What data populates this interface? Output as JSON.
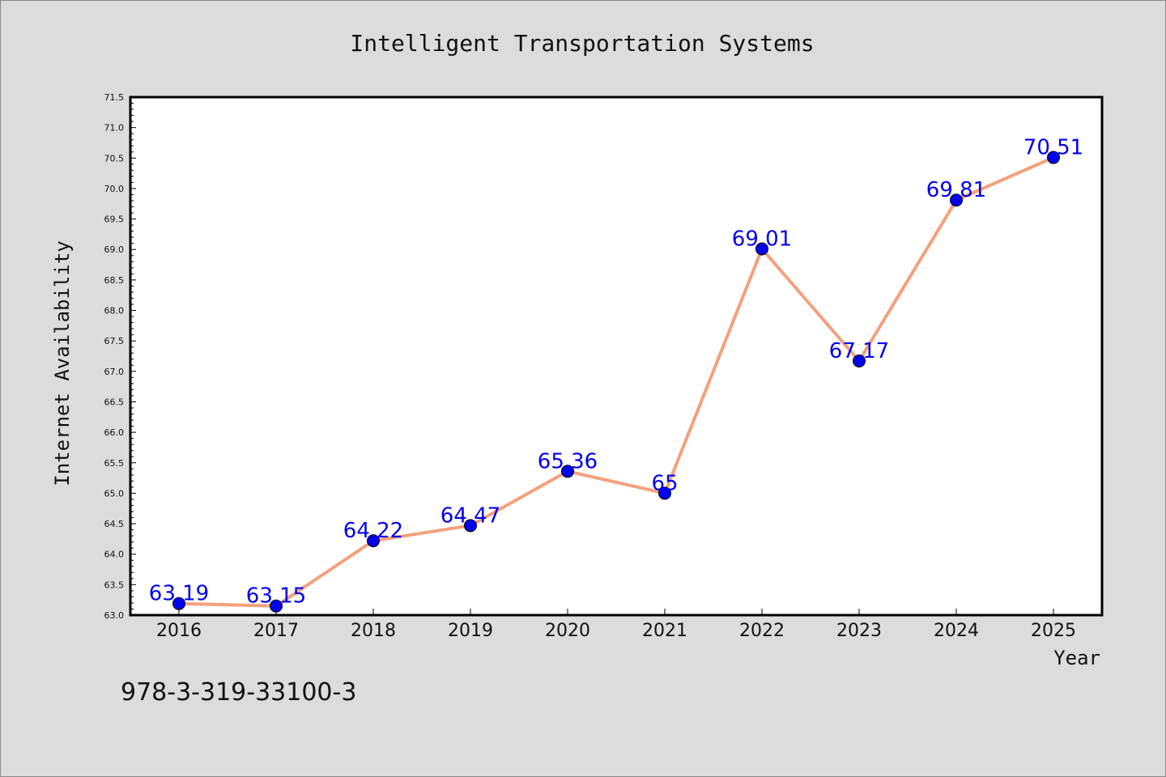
{
  "chart_data": {
    "type": "line",
    "title": "Intelligent Transportation Systems",
    "xlabel": "Year",
    "ylabel": "Internet Availability",
    "categories": [
      "2016",
      "2017",
      "2018",
      "2019",
      "2020",
      "2021",
      "2022",
      "2023",
      "2024",
      "2025"
    ],
    "series": [
      {
        "values": [
          63.19,
          63.15,
          64.22,
          64.47,
          65.36,
          65,
          69.01,
          67.17,
          69.81,
          70.51
        ],
        "labels": [
          "63.19",
          "63.15",
          "64.22",
          "64.47",
          "65.36",
          "65",
          "69.01",
          "67.17",
          "69.81",
          "70.51"
        ],
        "line_color": "#f4a07c",
        "marker_color": "#0000ee"
      }
    ],
    "ylim": [
      63.0,
      71.5
    ],
    "yticks": [
      "63.0",
      "63.5",
      "64.0",
      "64.5",
      "65.0",
      "65.5",
      "66.0",
      "66.5",
      "67.0",
      "67.5",
      "68.0",
      "68.5",
      "69.0",
      "69.5",
      "70.0",
      "70.5",
      "71.0",
      "71.5"
    ],
    "grid": false,
    "legend": "none",
    "background": "#dcdcdc",
    "plot_background": "#ffffff"
  },
  "footnote": "978-3-319-33100-3"
}
